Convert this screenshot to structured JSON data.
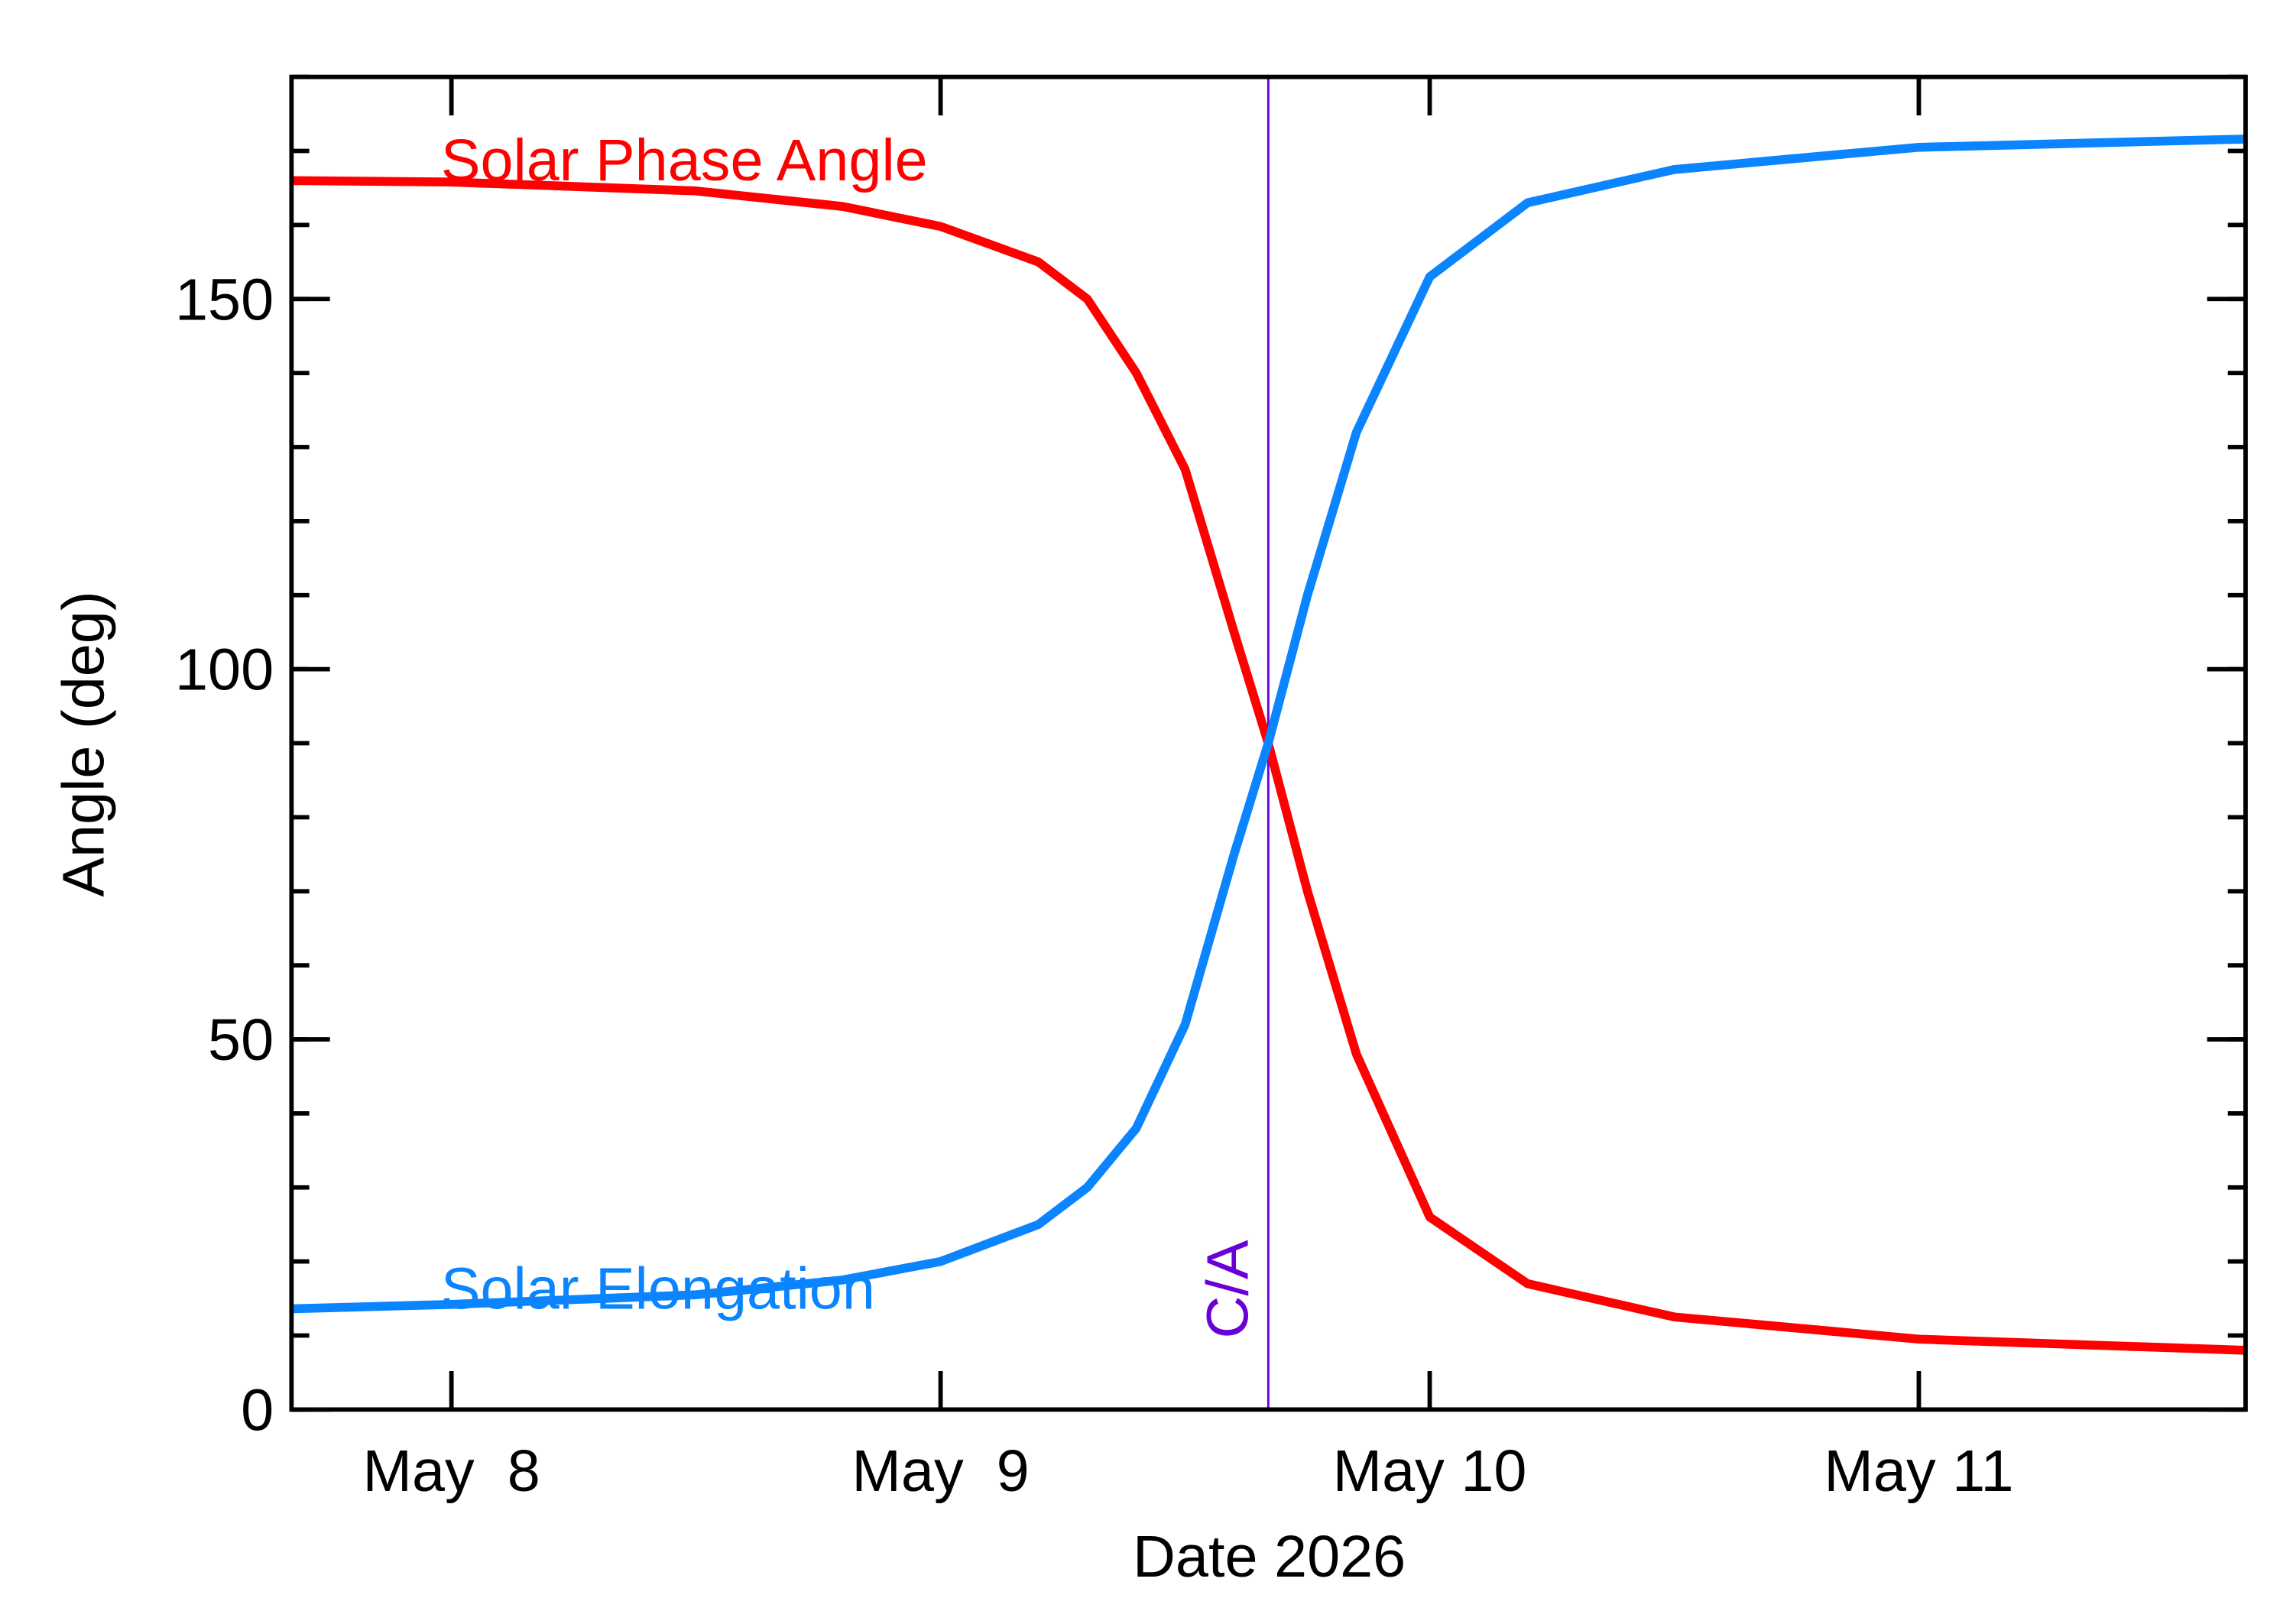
{
  "chart_data": {
    "type": "line",
    "x_label": "Date 2026",
    "y_label": "Angle (deg)",
    "x": [
      7.67,
      8.0,
      8.5,
      8.8,
      9.0,
      9.2,
      9.3,
      9.4,
      9.5,
      9.6,
      9.67,
      9.75,
      9.85,
      10.0,
      10.2,
      10.5,
      11.0,
      11.67
    ],
    "series": [
      {
        "name": "Solar Phase Angle",
        "color": "#ff0000",
        "values": [
          166,
          165.8,
          164.6,
          162.5,
          159.8,
          155,
          150,
          140,
          127,
          105,
          90,
          70,
          48,
          26,
          17,
          12.5,
          9.5,
          8
        ]
      },
      {
        "name": "Solar Elongation",
        "color": "#0a84ff",
        "values": [
          13.6,
          14.2,
          15.5,
          17.5,
          20,
          25,
          30,
          38,
          52,
          75,
          90,
          110,
          132,
          153,
          163,
          167.5,
          170.5,
          171.6
        ]
      }
    ],
    "annotation": {
      "text": "C/A",
      "x": 9.67,
      "color": "#6a00d8"
    },
    "xlim": [
      7.673,
      11.668
    ],
    "xticks": [
      {
        "value": 8,
        "label": "May  8"
      },
      {
        "value": 9,
        "label": "May  9"
      },
      {
        "value": 10,
        "label": "May 10"
      },
      {
        "value": 11,
        "label": "May 11"
      }
    ],
    "ylim": [
      0,
      180
    ],
    "yticks": [
      0,
      50,
      100,
      150
    ]
  }
}
